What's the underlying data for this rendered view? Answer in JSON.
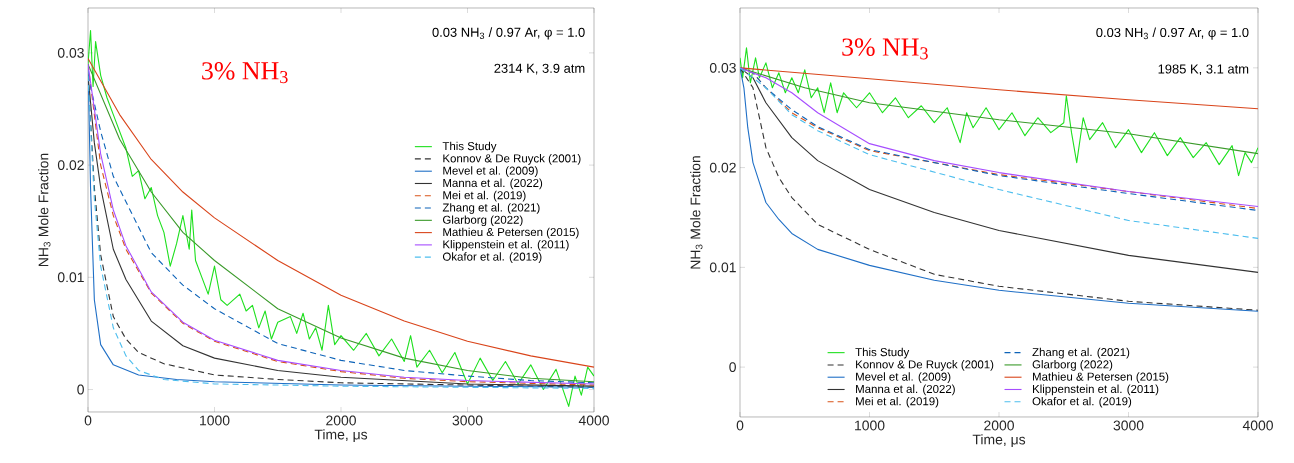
{
  "chart_data": [
    {
      "type": "line",
      "xlabel": "Time, μs",
      "ylabel": "NH$_{3}$ Mole Fraction",
      "annotations": [
        "3% NH$_{3}$",
        "0.03 NH$_{3}$ / 0.97 Ar, φ = 1.0",
        "2314 K,  3.9 atm"
      ],
      "xlim": [
        0,
        4000
      ],
      "ylim": [
        -0.002,
        0.034
      ],
      "xticks": [
        0,
        1000,
        2000,
        3000,
        4000
      ],
      "yticks": [
        0,
        0.01,
        0.02,
        0.03
      ],
      "legend": "right",
      "series": [
        {
          "name": "This Study",
          "color": "#1ee01e",
          "line_style": "solid",
          "x": [
            0,
            20,
            40,
            60,
            100,
            150,
            200,
            250,
            300,
            350,
            400,
            450,
            500,
            550,
            600,
            650,
            700,
            750,
            800,
            820,
            850,
            900,
            950,
            1000,
            1050,
            1100,
            1200,
            1250,
            1300,
            1350,
            1400,
            1450,
            1500,
            1600,
            1650,
            1700,
            1750,
            1800,
            1850,
            1900,
            1950,
            2000,
            2100,
            2200,
            2300,
            2400,
            2500,
            2550,
            2600,
            2700,
            2800,
            2900,
            3000,
            3100,
            3200,
            3300,
            3400,
            3500,
            3600,
            3700,
            3800,
            3850,
            3900,
            3950,
            4000
          ],
          "values": [
            0.029,
            0.032,
            0.027,
            0.031,
            0.028,
            0.026,
            0.0245,
            0.023,
            0.0215,
            0.019,
            0.0195,
            0.017,
            0.018,
            0.0155,
            0.014,
            0.011,
            0.013,
            0.0155,
            0.0125,
            0.016,
            0.0115,
            0.01,
            0.0085,
            0.011,
            0.008,
            0.0075,
            0.0085,
            0.007,
            0.0075,
            0.0055,
            0.007,
            0.0045,
            0.006,
            0.0065,
            0.005,
            0.0068,
            0.0045,
            0.0055,
            0.0035,
            0.0075,
            0.004,
            0.0048,
            0.0035,
            0.005,
            0.003,
            0.0045,
            0.0025,
            0.0048,
            0.002,
            0.0035,
            0.0015,
            0.0033,
            0.0005,
            0.0028,
            0.0008,
            0.0025,
            0.0005,
            0.0022,
            0.0,
            0.0018,
            -0.0015,
            0.0012,
            -0.0005,
            0.002,
            0.0012
          ]
        },
        {
          "name": "Konnov & De Ruyck (2001)",
          "color": "#333333",
          "line_style": "dashed",
          "x": [
            0,
            50,
            100,
            200,
            300,
            400,
            600,
            1000,
            1500,
            2000,
            3000,
            4000
          ],
          "values": [
            0.028,
            0.018,
            0.012,
            0.0065,
            0.0045,
            0.0033,
            0.0023,
            0.0013,
            0.0009,
            0.0006,
            0.0004,
            0.0002
          ]
        },
        {
          "name": "Mevel et al. (2009)",
          "color": "#1f6fc6",
          "line_style": "solid",
          "x": [
            0,
            20,
            50,
            100,
            200,
            400,
            700,
            1000,
            2000,
            3000,
            4000
          ],
          "values": [
            0.029,
            0.018,
            0.008,
            0.004,
            0.0022,
            0.0013,
            0.0009,
            0.0007,
            0.0004,
            0.0003,
            0.0002
          ]
        },
        {
          "name": "Manna et al. (2022)",
          "color": "#333333",
          "line_style": "solid",
          "x": [
            0,
            50,
            100,
            200,
            300,
            500,
            750,
            1000,
            1500,
            2000,
            3000,
            4000
          ],
          "values": [
            0.028,
            0.022,
            0.018,
            0.0125,
            0.0098,
            0.0061,
            0.0039,
            0.0028,
            0.0017,
            0.0011,
            0.0005,
            0.0003
          ]
        },
        {
          "name": "Mei et al. (2019)",
          "color": "#d95319",
          "line_style": "dashed",
          "x": [
            0,
            100,
            200,
            300,
            500,
            750,
            1000,
            1500,
            2000,
            2500,
            3000,
            4000
          ],
          "values": [
            0.029,
            0.02,
            0.0155,
            0.0125,
            0.0086,
            0.0059,
            0.0043,
            0.0025,
            0.0016,
            0.001,
            0.0007,
            0.0004
          ]
        },
        {
          "name": "Zhang et al. (2021)",
          "color": "#0d63b8",
          "line_style": "dashed",
          "x": [
            0,
            100,
            200,
            500,
            750,
            1000,
            1500,
            2000,
            2500,
            3000,
            3500,
            4000
          ],
          "values": [
            0.028,
            0.023,
            0.019,
            0.0122,
            0.0093,
            0.0072,
            0.0041,
            0.0026,
            0.0017,
            0.0012,
            0.0008,
            0.0006
          ]
        },
        {
          "name": "Glarborg (2022)",
          "color": "#3a9a2a",
          "line_style": "solid",
          "x": [
            0,
            250,
            500,
            750,
            1000,
            1500,
            2000,
            2500,
            3000,
            3500,
            4000
          ],
          "values": [
            0.029,
            0.0223,
            0.0176,
            0.014,
            0.0115,
            0.0072,
            0.0046,
            0.0028,
            0.0017,
            0.001,
            0.0007
          ]
        },
        {
          "name": "Mathieu & Petersen (2015)",
          "color": "#d9441a",
          "line_style": "solid",
          "x": [
            0,
            250,
            500,
            750,
            1000,
            1500,
            2000,
            2500,
            3000,
            3500,
            4000
          ],
          "values": [
            0.0295,
            0.0245,
            0.0205,
            0.0176,
            0.0153,
            0.0115,
            0.0084,
            0.0061,
            0.0043,
            0.003,
            0.002
          ]
        },
        {
          "name": "Klippenstein et al. (2011)",
          "color": "#a64dff",
          "line_style": "solid",
          "x": [
            0,
            100,
            200,
            300,
            500,
            750,
            1000,
            1500,
            2000,
            2500,
            3000,
            4000
          ],
          "values": [
            0.029,
            0.021,
            0.016,
            0.0128,
            0.0087,
            0.006,
            0.0044,
            0.0026,
            0.0017,
            0.0011,
            0.0008,
            0.0005
          ]
        },
        {
          "name": "Okafor et al. (2019)",
          "color": "#4dbeee",
          "line_style": "dashed",
          "x": [
            0,
            50,
            100,
            200,
            300,
            400,
            600,
            1000,
            2000,
            4000
          ],
          "values": [
            0.028,
            0.017,
            0.011,
            0.0055,
            0.003,
            0.0017,
            0.0009,
            0.0005,
            0.0003,
            0.0001
          ]
        }
      ]
    },
    {
      "type": "line",
      "xlabel": "Time, μs",
      "ylabel": "NH$_{3}$ Mole Fraction",
      "annotations": [
        "3% NH$_{3}$",
        "0.03 NH$_{3}$ / 0.97 Ar,  φ = 1.0",
        "1985 K,  3.1 atm"
      ],
      "xlim": [
        0,
        4000
      ],
      "ylim": [
        -0.005,
        0.036
      ],
      "xticks": [
        0,
        1000,
        2000,
        3000,
        4000
      ],
      "yticks": [
        0,
        0.01,
        0.02,
        0.03
      ],
      "legend": "bottom",
      "series": [
        {
          "name": "This Study",
          "color": "#1ee01e",
          "line_style": "solid",
          "x": [
            0,
            20,
            50,
            80,
            120,
            150,
            200,
            250,
            300,
            350,
            400,
            450,
            500,
            550,
            600,
            650,
            700,
            750,
            800,
            900,
            1000,
            1100,
            1200,
            1300,
            1400,
            1500,
            1600,
            1700,
            1750,
            1800,
            1900,
            2000,
            2100,
            2200,
            2300,
            2400,
            2500,
            2520,
            2560,
            2600,
            2650,
            2700,
            2800,
            2900,
            3000,
            3100,
            3200,
            3300,
            3400,
            3500,
            3600,
            3700,
            3800,
            3850,
            3900,
            3950,
            4000
          ],
          "values": [
            0.031,
            0.029,
            0.032,
            0.0285,
            0.031,
            0.029,
            0.0305,
            0.028,
            0.0295,
            0.0275,
            0.029,
            0.0275,
            0.0298,
            0.027,
            0.028,
            0.0255,
            0.0285,
            0.0255,
            0.0275,
            0.026,
            0.0275,
            0.0255,
            0.027,
            0.025,
            0.0262,
            0.0245,
            0.026,
            0.0225,
            0.0255,
            0.024,
            0.026,
            0.0238,
            0.0255,
            0.0232,
            0.025,
            0.0235,
            0.0245,
            0.0272,
            0.0235,
            0.0205,
            0.025,
            0.0228,
            0.0245,
            0.022,
            0.0238,
            0.0215,
            0.0235,
            0.0212,
            0.023,
            0.021,
            0.0225,
            0.0203,
            0.0222,
            0.0192,
            0.0215,
            0.0205,
            0.022
          ]
        },
        {
          "name": "Konnov & De Ruyck (2001)",
          "color": "#333333",
          "line_style": "dashed",
          "x": [
            0,
            100,
            150,
            200,
            300,
            400,
            600,
            1000,
            1500,
            2000,
            3000,
            4000
          ],
          "values": [
            0.03,
            0.028,
            0.025,
            0.022,
            0.019,
            0.017,
            0.0143,
            0.0118,
            0.0093,
            0.0081,
            0.0066,
            0.0057
          ]
        },
        {
          "name": "Mevel et al. (2009)",
          "color": "#1f6fc6",
          "line_style": "solid",
          "x": [
            0,
            30,
            60,
            100,
            150,
            200,
            300,
            400,
            600,
            1000,
            1500,
            2000,
            3000,
            4000
          ],
          "values": [
            0.03,
            0.028,
            0.024,
            0.0205,
            0.0185,
            0.0165,
            0.0148,
            0.0134,
            0.0118,
            0.0102,
            0.0087,
            0.0077,
            0.0064,
            0.0056
          ]
        },
        {
          "name": "Manna et al. (2022)",
          "color": "#333333",
          "line_style": "solid",
          "x": [
            0,
            100,
            200,
            400,
            600,
            1000,
            1500,
            2000,
            3000,
            4000
          ],
          "values": [
            0.03,
            0.029,
            0.0265,
            0.023,
            0.0207,
            0.0178,
            0.0155,
            0.0137,
            0.0112,
            0.0095
          ]
        },
        {
          "name": "Mei et al. (2019)",
          "color": "#d95319",
          "line_style": "dashed",
          "x": [
            0,
            100,
            200,
            400,
            600,
            1000,
            2000,
            3000,
            4000
          ],
          "values": [
            0.03,
            0.0295,
            0.028,
            0.0255,
            0.024,
            0.0217,
            0.0193,
            0.0176,
            0.0159
          ]
        },
        {
          "name": "Zhang et al. (2021)",
          "color": "#0d63b8",
          "line_style": "dashed",
          "x": [
            0,
            100,
            200,
            400,
            600,
            1000,
            2000,
            3000,
            4000
          ],
          "values": [
            0.03,
            0.0295,
            0.028,
            0.0258,
            0.0241,
            0.0218,
            0.0192,
            0.0174,
            0.0157
          ]
        },
        {
          "name": "Glarborg (2022)",
          "color": "#3a9a2a",
          "line_style": "solid",
          "x": [
            0,
            500,
            1000,
            2000,
            3000,
            4000
          ],
          "values": [
            0.03,
            0.028,
            0.0265,
            0.0248,
            0.0234,
            0.0214
          ]
        },
        {
          "name": "Mathieu & Petersen (2015)",
          "color": "#d9441a",
          "line_style": "solid",
          "x": [
            0,
            1000,
            2000,
            3000,
            4000
          ],
          "values": [
            0.03,
            0.0289,
            0.0278,
            0.0268,
            0.0259
          ]
        },
        {
          "name": "Klippenstein et al. (2011)",
          "color": "#a64dff",
          "line_style": "solid",
          "x": [
            0,
            200,
            400,
            600,
            1000,
            1500,
            2000,
            3000,
            4000
          ],
          "values": [
            0.03,
            0.029,
            0.0275,
            0.0255,
            0.0224,
            0.0207,
            0.0195,
            0.0176,
            0.0161
          ]
        },
        {
          "name": "Okafor et al. (2019)",
          "color": "#4dbeee",
          "line_style": "dashed",
          "x": [
            0,
            200,
            400,
            600,
            1000,
            2000,
            3000,
            4000
          ],
          "values": [
            0.03,
            0.028,
            0.0253,
            0.0237,
            0.0213,
            0.0178,
            0.0147,
            0.0129
          ]
        }
      ]
    }
  ]
}
